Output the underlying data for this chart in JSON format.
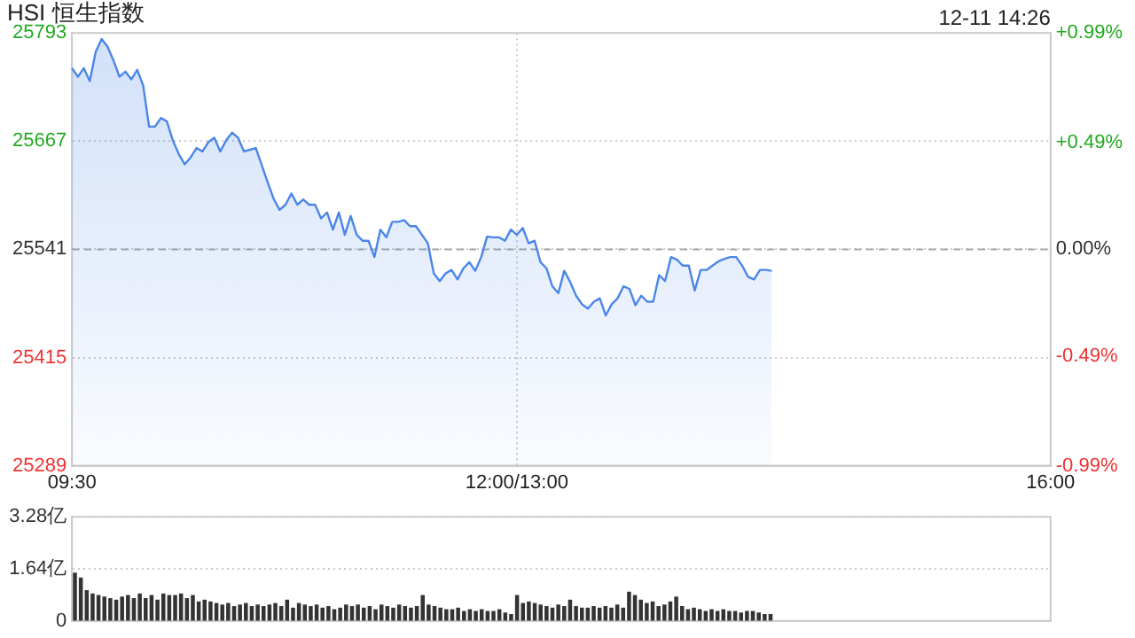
{
  "chart_data": [
    {
      "type": "area",
      "title": "HSI 恒生指数",
      "annotations": [
        "12-11 14:26"
      ],
      "categories": [
        "09:30",
        null,
        null,
        null,
        null,
        null,
        null,
        null,
        null,
        null,
        null,
        null,
        null,
        null,
        null,
        null,
        null,
        null,
        null,
        null,
        null,
        null,
        null,
        null,
        null,
        null,
        null,
        null,
        null,
        null,
        null,
        null,
        null,
        null,
        null,
        null,
        null,
        null,
        null,
        null,
        null,
        null,
        null,
        null,
        null,
        null,
        null,
        null,
        null,
        null,
        null,
        null,
        null,
        null,
        null,
        null,
        null,
        null,
        null,
        null,
        null,
        null,
        null,
        null,
        null,
        null,
        null,
        null,
        null,
        null,
        null,
        null,
        null,
        null,
        null,
        "12:00/13:00",
        null,
        null,
        null,
        null,
        null,
        null,
        null,
        null,
        null,
        null,
        null,
        null,
        null,
        null,
        null,
        null,
        null,
        null,
        null,
        null,
        null,
        null,
        null,
        null,
        null,
        null,
        null,
        null,
        null,
        null,
        null,
        null,
        null,
        null,
        null,
        null,
        null,
        null,
        null,
        null,
        null,
        null,
        null,
        null,
        null,
        null,
        null,
        null,
        null,
        null,
        null,
        null,
        null,
        null,
        null,
        null,
        null,
        null,
        null,
        null,
        null,
        null,
        null,
        null,
        null,
        null,
        null,
        null,
        null,
        null,
        null,
        null,
        null,
        null,
        null,
        null,
        null,
        null,
        null,
        null,
        null,
        null,
        null,
        null,
        null,
        null,
        null,
        null,
        null,
        "16:00"
      ],
      "series": [
        {
          "color": "#4a86e8",
          "values": [
            25752,
            25742,
            25752,
            25737,
            25771,
            25786,
            25777,
            25761,
            25742,
            25748,
            25739,
            25750,
            25732,
            25684,
            25684,
            25694,
            25690,
            25668,
            25652,
            25640,
            25648,
            25659,
            25655,
            25666,
            25671,
            25655,
            25668,
            25677,
            25671,
            25655,
            25657,
            25659,
            25639,
            25619,
            25600,
            25587,
            25593,
            25606,
            25593,
            25599,
            25593,
            25593,
            25577,
            25584,
            25564,
            25584,
            25558,
            25580,
            25558,
            25551,
            25551,
            25532,
            25564,
            25555,
            25573,
            25573,
            25575,
            25568,
            25568,
            25558,
            25548,
            25513,
            25504,
            25513,
            25517,
            25506,
            25519,
            25526,
            25516,
            25532,
            25556,
            25555,
            25555,
            25551,
            25564,
            25558,
            25566,
            25548,
            25551,
            25526,
            25519,
            25498,
            25490,
            25516,
            25503,
            25487,
            25477,
            25472,
            25480,
            25484,
            25464,
            25477,
            25484,
            25498,
            25495,
            25476,
            25487,
            25480,
            25480,
            25511,
            25504,
            25532,
            25529,
            25522,
            25522,
            25493,
            25517,
            25517,
            25522,
            25527,
            25530,
            25532,
            25532,
            25522,
            25509,
            25506,
            25517,
            25517,
            25516,
            null,
            null,
            null,
            null,
            null,
            null,
            null,
            null,
            null,
            null,
            null,
            null,
            null,
            null,
            null,
            null,
            null,
            null,
            null,
            null,
            null,
            null,
            null,
            null,
            null,
            null,
            null,
            null,
            null,
            null,
            null,
            null,
            null,
            null,
            null,
            null,
            null,
            null,
            null,
            null,
            null,
            null,
            null,
            null,
            null,
            null,
            null
          ]
        }
      ],
      "ylim": [
        25289,
        25793
      ],
      "yticks": [
        25289,
        25415,
        25541,
        25667,
        25793
      ],
      "y2lim": [
        -0.99,
        0.99
      ],
      "y2ticks": [
        {
          "value": -0.99,
          "label": "-0.99%"
        },
        {
          "value": -0.49,
          "label": "-0.49%"
        },
        {
          "value": 0,
          "label": "0.00%"
        },
        {
          "value": 0.49,
          "label": "+0.49%"
        },
        {
          "value": 0.99,
          "label": "+0.99%"
        }
      ],
      "ref_lines": [
        {
          "axis": "y",
          "value": 25541,
          "color": "#aaaaaa",
          "line_style": "dashed"
        }
      ],
      "grid": true,
      "legend": false,
      "marker": "none"
    },
    {
      "type": "bar",
      "categories": [
        null,
        null,
        null,
        null,
        null,
        null,
        null,
        null,
        null,
        null,
        null,
        null,
        null,
        null,
        null,
        null,
        null,
        null,
        null,
        null,
        null,
        null,
        null,
        null,
        null,
        null,
        null,
        null,
        null,
        null,
        null,
        null,
        null,
        null,
        null,
        null,
        null,
        null,
        null,
        null,
        null,
        null,
        null,
        null,
        null,
        null,
        null,
        null,
        null,
        null,
        null,
        null,
        null,
        null,
        null,
        null,
        null,
        null,
        null,
        null,
        null,
        null,
        null,
        null,
        null,
        null,
        null,
        null,
        null,
        null,
        null,
        null,
        null,
        null,
        null,
        null,
        null,
        null,
        null,
        null,
        null,
        null,
        null,
        null,
        null,
        null,
        null,
        null,
        null,
        null,
        null,
        null,
        null,
        null,
        null,
        null,
        null,
        null,
        null,
        null,
        null,
        null,
        null,
        null,
        null,
        null,
        null,
        null,
        null,
        null,
        null,
        null,
        null,
        null,
        null,
        null,
        null,
        null,
        null,
        null,
        null,
        null,
        null,
        null,
        null,
        null,
        null,
        null,
        null,
        null,
        null,
        null,
        null,
        null,
        null,
        null,
        null,
        null,
        null,
        null,
        null,
        null,
        null,
        null,
        null,
        null,
        null,
        null,
        null,
        null,
        null,
        null,
        null,
        null,
        null,
        null,
        null,
        null,
        null,
        null,
        null,
        null,
        null,
        null,
        null,
        null
      ],
      "series": [
        {
          "color": "#333333",
          "values": [
            1.5,
            1.35,
            0.95,
            0.85,
            0.8,
            0.75,
            0.7,
            0.65,
            0.75,
            0.8,
            0.7,
            0.85,
            0.7,
            0.8,
            0.65,
            0.85,
            0.8,
            0.8,
            0.85,
            0.7,
            0.8,
            0.6,
            0.65,
            0.6,
            0.55,
            0.5,
            0.55,
            0.45,
            0.5,
            0.55,
            0.45,
            0.5,
            0.45,
            0.5,
            0.55,
            0.45,
            0.65,
            0.4,
            0.55,
            0.5,
            0.45,
            0.5,
            0.4,
            0.45,
            0.35,
            0.4,
            0.5,
            0.45,
            0.5,
            0.4,
            0.45,
            0.35,
            0.5,
            0.45,
            0.4,
            0.5,
            0.45,
            0.4,
            0.45,
            0.8,
            0.5,
            0.45,
            0.4,
            0.35,
            0.35,
            0.4,
            0.3,
            0.35,
            0.3,
            0.35,
            0.3,
            0.3,
            0.35,
            0.25,
            0.2,
            0.8,
            0.55,
            0.6,
            0.55,
            0.5,
            0.45,
            0.4,
            0.5,
            0.45,
            0.65,
            0.45,
            0.4,
            0.4,
            0.45,
            0.4,
            0.45,
            0.4,
            0.5,
            0.4,
            0.9,
            0.8,
            0.65,
            0.55,
            0.6,
            0.45,
            0.5,
            0.6,
            0.75,
            0.45,
            0.35,
            0.4,
            0.35,
            0.3,
            0.35,
            0.3,
            0.35,
            0.3,
            0.3,
            0.25,
            0.3,
            0.3,
            0.25,
            0.2,
            0.2,
            null,
            null,
            null,
            null,
            null,
            null,
            null,
            null,
            null,
            null,
            null,
            null,
            null,
            null,
            null,
            null,
            null,
            null,
            null,
            null,
            null,
            null,
            null,
            null,
            null,
            null,
            null,
            null,
            null,
            null,
            null,
            null,
            null,
            null,
            null,
            null,
            null,
            null,
            null,
            null,
            null,
            null,
            null,
            null,
            null,
            null,
            null
          ]
        }
      ],
      "ylim": [
        0,
        3.28
      ],
      "yticks": [
        0,
        {
          "value": 1.64,
          "label": "1.64亿"
        },
        {
          "value": 3.28,
          "label": "3.28亿"
        }
      ],
      "tick_labels": "y",
      "grid": "y",
      "legend": false
    }
  ]
}
